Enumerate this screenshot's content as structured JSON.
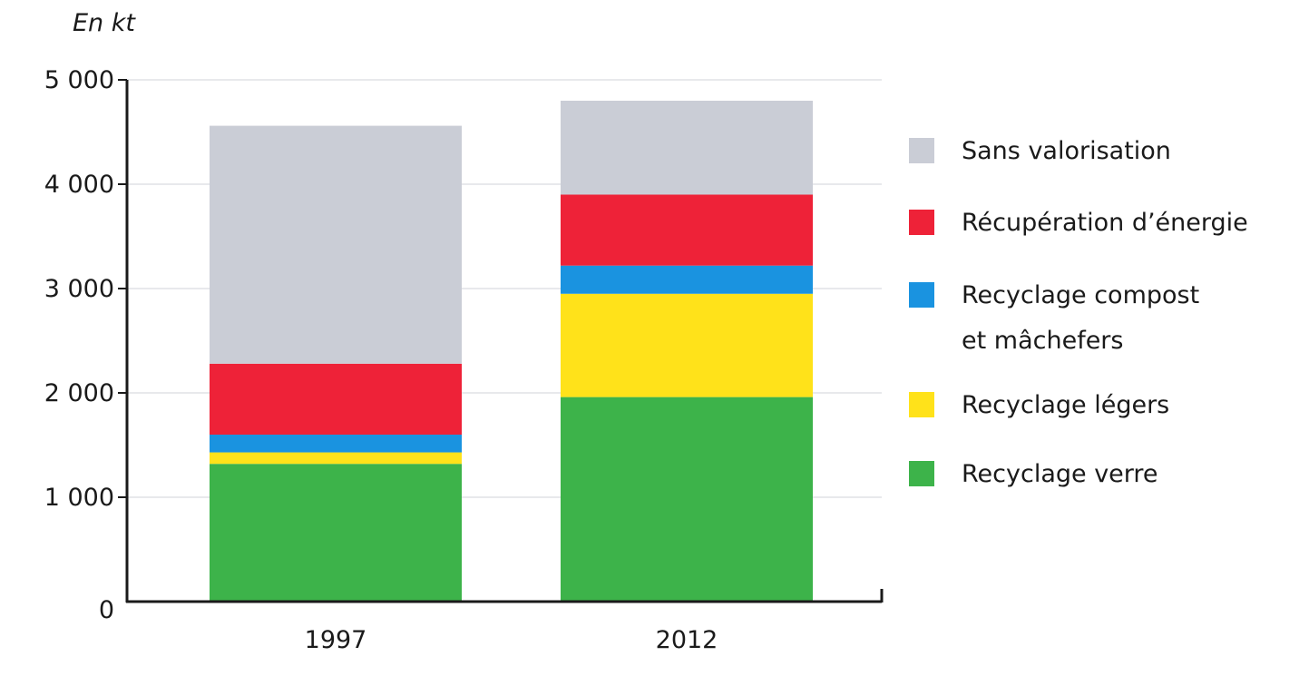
{
  "chart_data": {
    "type": "bar",
    "stacked": true,
    "unit_label": "En kt",
    "title": "",
    "xlabel": "",
    "ylabel": "",
    "categories": [
      "1997",
      "2012"
    ],
    "ylim": [
      0,
      5000
    ],
    "yticks": [
      0,
      1000,
      2000,
      3000,
      4000,
      5000
    ],
    "ytick_labels": [
      "0",
      "1 000",
      "2 000",
      "3 000",
      "4 000",
      "5 000"
    ],
    "grid": true,
    "legend_position": "right",
    "series": [
      {
        "name": "Recyclage verre",
        "values": [
          1320,
          1960
        ],
        "color": "#3db34a"
      },
      {
        "name": "Recyclage légers",
        "values": [
          110,
          990
        ],
        "color": "#ffe21a"
      },
      {
        "name": "Recyclage compost et mâchefers",
        "values": [
          170,
          270
        ],
        "color": "#1a93e0"
      },
      {
        "name": "Récupération d’énergie",
        "values": [
          680,
          680
        ],
        "color": "#ee2238"
      },
      {
        "name": "Sans valorisation",
        "values": [
          2280,
          900
        ],
        "color": "#cacdd6"
      }
    ],
    "legend_order": [
      4,
      3,
      2,
      1,
      0
    ]
  }
}
